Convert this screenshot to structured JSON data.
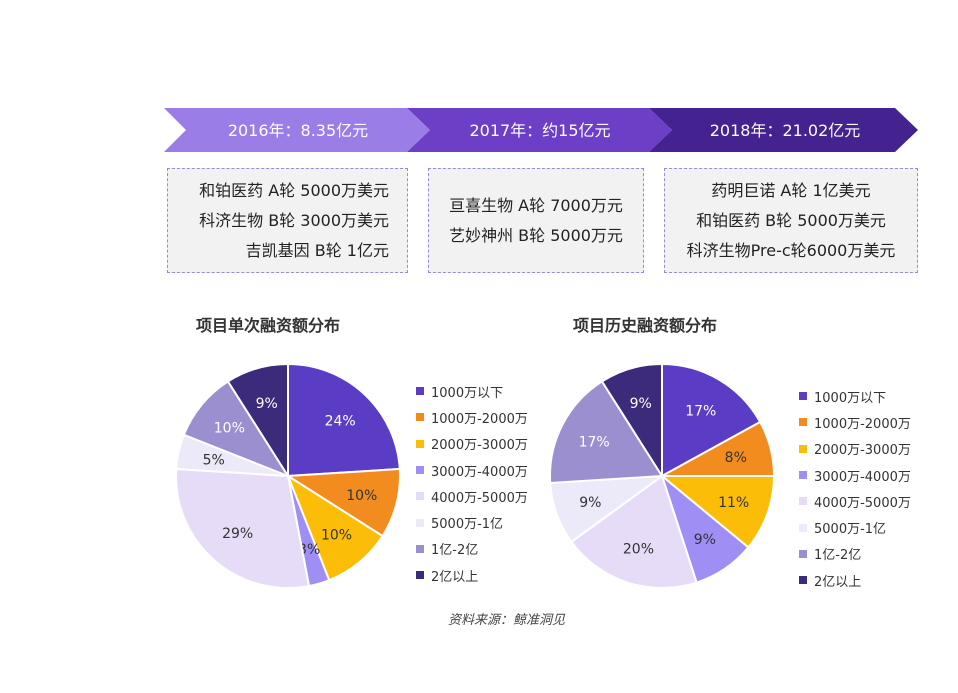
{
  "timeline": {
    "stages": [
      {
        "label": "2016年：8.35亿元",
        "color": "#9b7de8",
        "deals": [
          "和铂医药 A轮 5000万美元",
          "科济生物 B轮 3000万美元",
          "吉凯基因 B轮 1亿元"
        ]
      },
      {
        "label": "2017年：约15亿元",
        "color": "#6c3fc6",
        "deals": [
          "亘喜生物 A轮 7000万元",
          "艺妙神州 B轮 5000万元"
        ]
      },
      {
        "label": "2018年：21.02亿元",
        "color": "#44228f",
        "deals": [
          "药明巨诺 A轮 1亿美元",
          "和铂医药 B轮 5000万美元",
          "科济生物Pre-c轮6000万美元"
        ]
      }
    ]
  },
  "chart_data": [
    {
      "type": "pie",
      "title": "项目单次融资额分布",
      "categories": [
        "1000万以下",
        "1000万-2000万",
        "2000万-3000万",
        "3000万-4000万",
        "4000万-5000万",
        "5000万-1亿",
        "1亿-2亿",
        "2亿以上"
      ],
      "values": [
        24,
        10,
        10,
        3,
        29,
        5,
        10,
        9
      ],
      "labels": [
        "24%",
        "10%",
        "10%",
        "3%",
        "29%",
        "5%",
        "10%",
        "9%"
      ],
      "legend": "right"
    },
    {
      "type": "pie",
      "title": "项目历史融资额分布",
      "categories": [
        "1000万以下",
        "1000万-2000万",
        "2000万-3000万",
        "3000万-4000万",
        "4000万-5000万",
        "5000万-1亿",
        "1亿-2亿",
        "2亿以上"
      ],
      "values": [
        17,
        8,
        11,
        9,
        20,
        9,
        17,
        9
      ],
      "labels": [
        "17%",
        "8%",
        "11%",
        "9%",
        "20%",
        "9%",
        "17%",
        "9%"
      ],
      "legend": "right"
    }
  ],
  "colors": {
    "slices": [
      "#5b3cc4",
      "#f28c1e",
      "#fbbd08",
      "#9f8ff5",
      "#e6dcf8",
      "#eceaf8",
      "#9b8fd0",
      "#3c2a7a"
    ],
    "slice_label_dark": "#333333",
    "slice_label_light": "#ffffff"
  },
  "source": "资料来源：鲸准洞见"
}
